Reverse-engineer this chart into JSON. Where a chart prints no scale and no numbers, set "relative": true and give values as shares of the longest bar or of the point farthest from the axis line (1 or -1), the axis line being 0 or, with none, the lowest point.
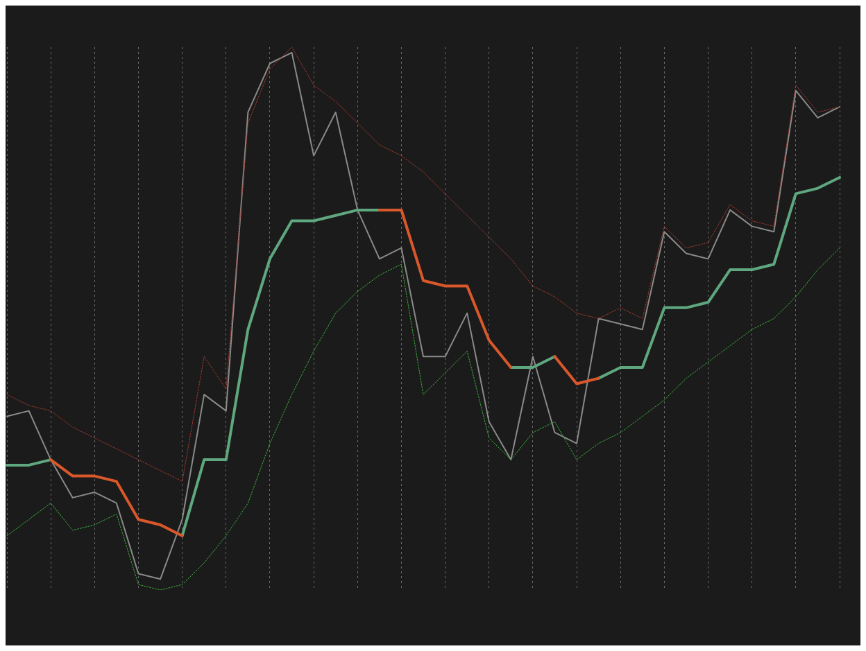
{
  "chart_data": {
    "type": "line",
    "relative": true,
    "grid": "x",
    "legend": false,
    "marker": "none",
    "categories": [
      null,
      null,
      null,
      null,
      null,
      null,
      null,
      null,
      null,
      null,
      null,
      null,
      null,
      null,
      null,
      null,
      null,
      null,
      null,
      null,
      null,
      null,
      null,
      null,
      null,
      null,
      null,
      null,
      null,
      null,
      null,
      null,
      null,
      null,
      null,
      null,
      null,
      null,
      null
    ],
    "series": [
      {
        "color": "#8a8a8a",
        "line_style": "solid",
        "values": [
          0.32,
          0.33,
          0.24,
          0.17,
          0.18,
          0.16,
          0.03,
          0.02,
          0.13,
          0.36,
          0.33,
          0.88,
          0.97,
          0.99,
          0.8,
          0.88,
          0.7,
          0.61,
          0.63,
          0.43,
          0.43,
          0.51,
          0.31,
          0.24,
          0.43,
          0.29,
          0.27,
          0.5,
          0.49,
          0.48,
          0.66,
          0.62,
          0.61,
          0.7,
          0.67,
          0.66,
          0.92,
          0.87,
          0.89
        ]
      },
      {
        "color": "#a33a30",
        "line_style": "dotted",
        "values": [
          0.36,
          0.34,
          0.33,
          0.3,
          0.28,
          0.26,
          0.24,
          0.22,
          0.2,
          0.43,
          0.37,
          0.86,
          0.96,
          1.0,
          0.93,
          0.9,
          0.86,
          0.82,
          0.8,
          0.77,
          0.73,
          0.69,
          0.65,
          0.61,
          0.56,
          0.54,
          0.51,
          0.5,
          0.52,
          0.5,
          0.67,
          0.63,
          0.64,
          0.71,
          0.68,
          0.67,
          0.93,
          0.88,
          0.89
        ]
      },
      {
        "color": "#3cae3c",
        "line_style": "dotted",
        "values": [
          0.1,
          0.13,
          0.16,
          0.11,
          0.12,
          0.14,
          0.01,
          0,
          0.01,
          0.05,
          0.1,
          0.16,
          0.27,
          0.36,
          0.44,
          0.51,
          0.55,
          0.58,
          0.6,
          0.36,
          0.4,
          0.44,
          0.28,
          0.24,
          0.29,
          0.31,
          0.24,
          0.27,
          0.29,
          0.32,
          0.35,
          0.39,
          0.42,
          0.45,
          0.48,
          0.5,
          0.54,
          0.59,
          0.63
        ]
      },
      {
        "color": "#5fa77f",
        "line_style": "solid",
        "values": [
          0.23,
          0.23,
          0.24,
          null,
          null,
          null,
          null,
          null,
          0.1,
          0.24,
          0.24,
          0.48,
          0.61,
          0.68,
          0.68,
          0.69,
          0.7,
          0.7,
          null,
          null,
          null,
          null,
          null,
          0.41,
          0.41,
          0.43,
          null,
          0.39,
          0.41,
          0.41,
          0.52,
          0.52,
          0.53,
          0.59,
          0.59,
          0.6,
          0.73,
          0.74,
          0.76
        ]
      },
      {
        "color": "#d9582b",
        "line_style": "solid",
        "values": [
          null,
          null,
          0.24,
          0.21,
          0.21,
          0.2,
          0.13,
          0.12,
          0.1,
          null,
          null,
          null,
          null,
          null,
          null,
          null,
          null,
          0.7,
          0.7,
          0.57,
          0.56,
          0.56,
          0.46,
          0.41,
          null,
          0.43,
          0.38,
          0.39,
          null,
          null,
          null,
          null,
          null,
          null,
          null,
          null,
          null,
          null,
          null
        ]
      }
    ]
  }
}
